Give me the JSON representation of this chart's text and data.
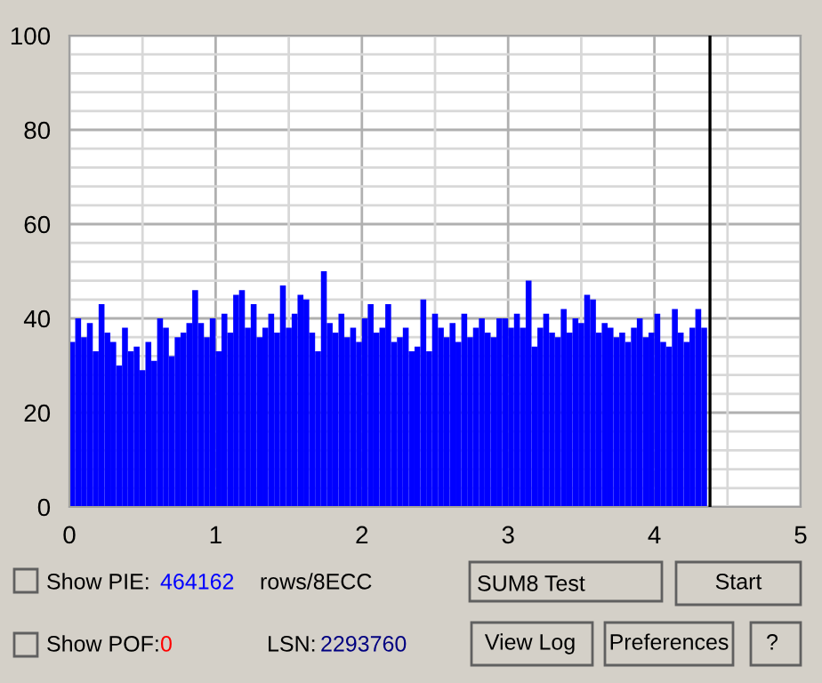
{
  "chart_data": {
    "type": "bar",
    "color": "#0000ff",
    "x": [
      0.02,
      0.06,
      0.1,
      0.14,
      0.18,
      0.22,
      0.26,
      0.3,
      0.34,
      0.38,
      0.42,
      0.46,
      0.5,
      0.54,
      0.58,
      0.62,
      0.66,
      0.7,
      0.74,
      0.78,
      0.82,
      0.86,
      0.9,
      0.94,
      0.98,
      1.02,
      1.06,
      1.1,
      1.14,
      1.18,
      1.22,
      1.26,
      1.3,
      1.34,
      1.38,
      1.42,
      1.46,
      1.5,
      1.54,
      1.58,
      1.62,
      1.66,
      1.7,
      1.74,
      1.78,
      1.82,
      1.86,
      1.9,
      1.94,
      1.98,
      2.02,
      2.06,
      2.1,
      2.14,
      2.18,
      2.22,
      2.26,
      2.3,
      2.34,
      2.38,
      2.42,
      2.46,
      2.5,
      2.54,
      2.58,
      2.62,
      2.66,
      2.7,
      2.74,
      2.78,
      2.82,
      2.86,
      2.9,
      2.94,
      2.98,
      3.02,
      3.06,
      3.1,
      3.14,
      3.18,
      3.22,
      3.26,
      3.3,
      3.34,
      3.38,
      3.42,
      3.46,
      3.5,
      3.54,
      3.58,
      3.62,
      3.66,
      3.7,
      3.74,
      3.78,
      3.82,
      3.86,
      3.9,
      3.94,
      3.98,
      4.02,
      4.06,
      4.1,
      4.14,
      4.18,
      4.22,
      4.26,
      4.3,
      4.34
    ],
    "values": [
      35,
      40,
      36,
      39,
      33,
      43,
      37,
      35,
      30,
      38,
      33,
      34,
      29,
      35,
      31,
      40,
      38,
      32,
      36,
      37,
      39,
      46,
      39,
      36,
      40,
      33,
      41,
      37,
      45,
      46,
      38,
      43,
      36,
      38,
      41,
      37,
      47,
      38,
      41,
      45,
      44,
      37,
      33,
      50,
      39,
      37,
      41,
      36,
      38,
      35,
      40,
      43,
      37,
      38,
      43,
      35,
      36,
      38,
      33,
      34,
      44,
      33,
      41,
      38,
      36,
      39,
      35,
      41,
      36,
      38,
      40,
      37,
      36,
      40,
      40,
      38,
      41,
      38,
      48,
      34,
      38,
      41,
      37,
      36,
      42,
      37,
      40,
      39,
      45,
      44,
      37,
      39,
      38,
      36,
      37,
      35,
      38,
      40,
      36,
      37,
      41,
      35,
      34,
      42,
      37,
      35,
      38,
      42,
      38
    ],
    "xlim": [
      0,
      5
    ],
    "xticks": [
      0,
      1,
      2,
      3,
      4,
      5
    ],
    "ylim": [
      0,
      100
    ],
    "yticks": [
      0,
      20,
      40,
      60,
      80,
      100
    ],
    "grid": true,
    "ref_lines": [
      {
        "axis": "x",
        "value": 4.38,
        "color": "#000000"
      }
    ],
    "annotations": [
      "Show PIE:",
      "464162",
      "rows/8ECC",
      "SUM8 Test",
      "Start",
      "Show POF:",
      "0",
      "LSN:",
      "2293760",
      "View Log",
      "Preferences",
      "?"
    ]
  }
}
